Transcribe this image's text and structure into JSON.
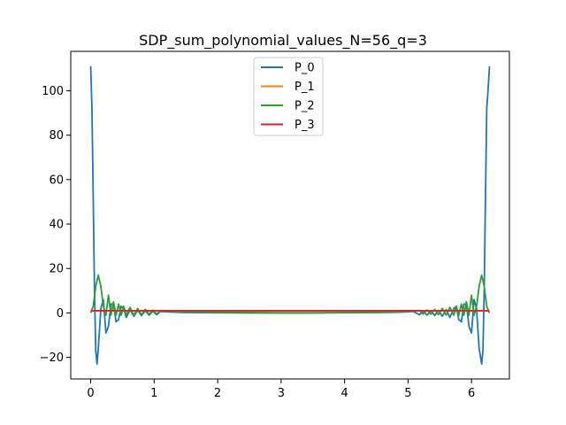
{
  "chart_data": {
    "type": "line",
    "title": "SDP_sum_polynomial_values_N=56_q=3",
    "xlabel": "",
    "ylabel": "",
    "xlim": [
      -0.314,
      6.597
    ],
    "ylim": [
      -29.7,
      117.7
    ],
    "xticks": [
      0,
      1,
      2,
      3,
      4,
      5,
      6
    ],
    "yticks": [
      -20,
      0,
      20,
      40,
      60,
      80,
      100
    ],
    "grid": false,
    "legend_position": "upper center",
    "series": [
      {
        "name": "P_0",
        "color": "#1f77b4",
        "x": [
          0,
          0.02,
          0.04,
          0.06,
          0.08,
          0.1,
          0.12,
          0.16,
          0.2,
          0.24,
          0.28,
          0.32,
          0.36,
          0.4,
          0.44,
          0.48,
          0.52,
          0.56,
          0.62,
          0.68,
          0.74,
          0.8,
          0.86,
          0.92,
          0.98,
          1.04,
          1.1,
          1.2,
          1.3,
          1.4,
          1.5,
          2.0,
          2.5,
          3.0,
          3.1416,
          3.5,
          4.0,
          4.5,
          4.78,
          4.88,
          4.98,
          5.08,
          5.18,
          5.24,
          5.3,
          5.36,
          5.42,
          5.48,
          5.54,
          5.6,
          5.66,
          5.72,
          5.76,
          5.8,
          5.84,
          5.88,
          5.92,
          5.96,
          6.0,
          6.04,
          6.08,
          6.12,
          6.16,
          6.18,
          6.2,
          6.22,
          6.24,
          6.26,
          6.2832
        ],
        "y": [
          111,
          92,
          52,
          10,
          -17,
          -23,
          -16,
          2,
          6,
          -9,
          -6,
          4,
          4,
          -4,
          -3,
          3,
          2,
          -2,
          1.5,
          -1.5,
          1.2,
          -1.2,
          1,
          -1,
          0.8,
          -0.8,
          0.7,
          0.5,
          0.4,
          0.3,
          0.2,
          0.1,
          0,
          0,
          0,
          0,
          0.1,
          0.2,
          0.3,
          0.4,
          0.5,
          0.7,
          -0.8,
          0.8,
          -1,
          1,
          -1.2,
          1.2,
          -1.5,
          1.5,
          -2,
          2,
          3,
          -3,
          -4,
          4,
          4,
          -6,
          -9,
          6,
          2,
          -16,
          -23,
          -17,
          10,
          52,
          92,
          100,
          111
        ]
      },
      {
        "name": "P_1",
        "color": "#ff7f0e",
        "x": [
          0,
          6.2832
        ],
        "y": [
          1,
          1
        ]
      },
      {
        "name": "P_2",
        "color": "#2ca02c",
        "x": [
          0,
          0.04,
          0.08,
          0.12,
          0.16,
          0.2,
          0.24,
          0.28,
          0.32,
          0.36,
          0.4,
          0.44,
          0.48,
          0.52,
          0.56,
          0.62,
          0.68,
          0.74,
          0.8,
          0.86,
          0.92,
          0.98,
          1.04,
          1.1,
          1.2,
          1.3,
          1.4,
          1.5,
          2.0,
          2.5,
          3.0,
          3.1416,
          3.5,
          4.0,
          4.5,
          4.78,
          4.88,
          4.98,
          5.08,
          5.18,
          5.24,
          5.3,
          5.36,
          5.42,
          5.48,
          5.54,
          5.6,
          5.66,
          5.72,
          5.76,
          5.8,
          5.84,
          5.88,
          5.92,
          5.96,
          6.0,
          6.04,
          6.08,
          6.12,
          6.16,
          6.2,
          6.24,
          6.2832
        ],
        "y": [
          0,
          3,
          12,
          17,
          12,
          3,
          -1,
          8,
          -1,
          5,
          -1,
          4,
          -1,
          3,
          -1,
          2.5,
          -1,
          2,
          -0.8,
          1.6,
          -0.6,
          1.3,
          -0.5,
          1.1,
          0.9,
          0.7,
          0.6,
          0.5,
          0.3,
          0.2,
          0.1,
          0.1,
          0.1,
          0.2,
          0.3,
          0.5,
          0.6,
          0.7,
          0.9,
          1.1,
          -0.5,
          1.3,
          -0.6,
          1.6,
          -0.8,
          2,
          -1,
          2.5,
          -1,
          3,
          -1,
          4,
          -1,
          5,
          -1,
          8,
          -1,
          3,
          12,
          17,
          12,
          3,
          0
        ]
      },
      {
        "name": "P_3",
        "color": "#d62728",
        "x": [
          0,
          6.2832
        ],
        "y": [
          1,
          1
        ]
      }
    ]
  }
}
